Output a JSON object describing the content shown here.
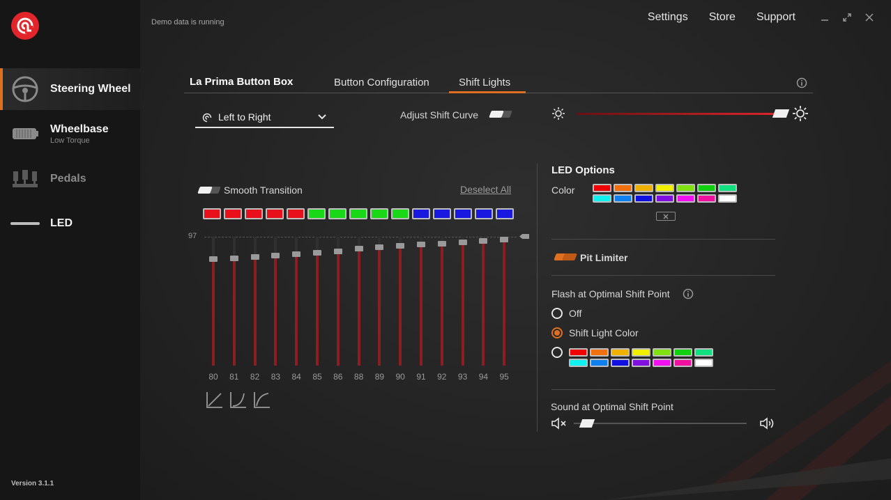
{
  "sidebar": {
    "items": [
      {
        "label": "Steering Wheel",
        "sub": "",
        "icon": "steering-wheel-icon",
        "active": true
      },
      {
        "label": "Wheelbase",
        "sub": "Low Torque",
        "icon": "wheelbase-icon",
        "active": false
      },
      {
        "label": "Pedals",
        "sub": "",
        "icon": "pedals-icon",
        "active": false
      },
      {
        "label": "LED",
        "sub": "",
        "icon": "led-icon",
        "active": false
      }
    ],
    "version": "Version 3.1.1"
  },
  "header": {
    "demo_status": "Demo data is running",
    "nav": [
      "Settings",
      "Store",
      "Support"
    ]
  },
  "tabs": {
    "device": "La Prima Button Box",
    "items": [
      "Button Configuration",
      "Shift Lights"
    ],
    "active": "Shift Lights"
  },
  "controls": {
    "direction": "Left to Right",
    "adjust_shift_curve": "Adjust Shift Curve",
    "smooth_transition": "Smooth Transition",
    "deselect_all": "Deselect All",
    "brightness_percent": 97
  },
  "leds": {
    "colors": [
      "#e8101a",
      "#e8101a",
      "#e8101a",
      "#e8101a",
      "#e8101a",
      "#18d818",
      "#18d818",
      "#18d818",
      "#18d818",
      "#18d818",
      "#1818e0",
      "#1818e0",
      "#1818e0",
      "#1818e0",
      "#1818e0"
    ]
  },
  "rpm": {
    "top_label": "97",
    "thresholds": [
      "80",
      "81",
      "82",
      "83",
      "84",
      "85",
      "86",
      "88",
      "89",
      "90",
      "91",
      "92",
      "93",
      "94",
      "95"
    ],
    "values": [
      80,
      81,
      82,
      83,
      84,
      85,
      86,
      88,
      89,
      90,
      91,
      92,
      93,
      94,
      95
    ]
  },
  "led_options": {
    "title": "LED Options",
    "color_label": "Color",
    "palette": [
      "#f00000",
      "#f07010",
      "#f0b000",
      "#f0f000",
      "#80e010",
      "#10d010",
      "#10e080",
      "#10f0f0",
      "#1080f0",
      "#1010e0",
      "#8010e0",
      "#f010f0",
      "#f010a0",
      "#ffffff"
    ],
    "pit_limiter": "Pit Limiter",
    "flash_title": "Flash at Optimal Shift Point",
    "flash_options": [
      "Off",
      "Shift Light Color"
    ],
    "flash_selected": "Shift Light Color",
    "sound_title": "Sound at Optimal Shift Point",
    "sound_volume": 0.04
  }
}
